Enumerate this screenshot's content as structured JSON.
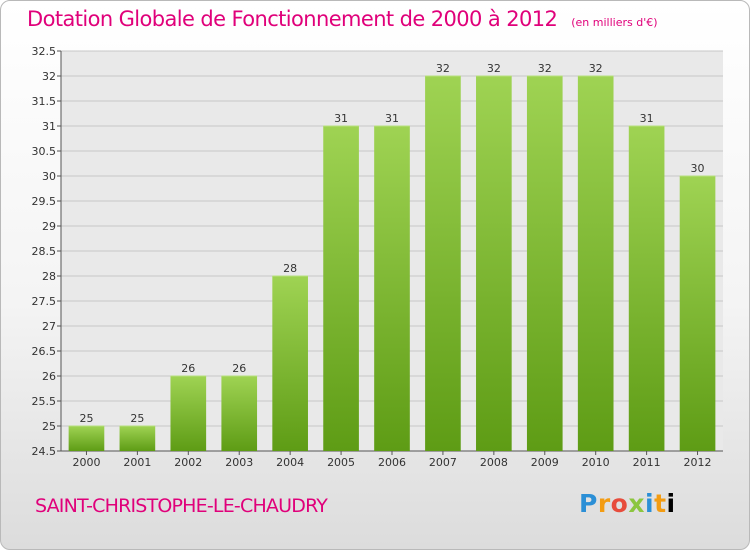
{
  "title": "Dotation Globale de Fonctionnement de 2000 à 2012",
  "subtitle": "(en milliers d'€)",
  "commune": "SAINT-CHRISTOPHE-LE-CHAUDRY",
  "logo": {
    "text": "Proxiti",
    "letters": [
      "P",
      "r",
      "o",
      "x",
      "i",
      "t",
      "i"
    ]
  },
  "colors": {
    "title": "#e0007a",
    "bar_top": "#9fd353",
    "bar_bottom": "#5e9c15"
  },
  "chart_data": {
    "type": "bar",
    "categories": [
      "2000",
      "2001",
      "2002",
      "2003",
      "2004",
      "2005",
      "2006",
      "2007",
      "2008",
      "2009",
      "2010",
      "2011",
      "2012"
    ],
    "values": [
      25,
      25,
      26,
      26,
      28,
      31,
      31,
      32,
      32,
      32,
      32,
      31,
      30
    ],
    "data_labels": [
      "25",
      "25",
      "26",
      "26",
      "28",
      "31",
      "31",
      "32",
      "32",
      "32",
      "32",
      "31",
      "30"
    ],
    "ylim": [
      24.5,
      32.5
    ],
    "yticks": [
      "24.5",
      "25",
      "25.5",
      "26",
      "26.5",
      "27",
      "27.5",
      "28",
      "28.5",
      "29",
      "29.5",
      "30",
      "30.5",
      "31",
      "31.5",
      "32",
      "32.5"
    ],
    "ytick_values": [
      24.5,
      25,
      25.5,
      26,
      26.5,
      27,
      27.5,
      28,
      28.5,
      29,
      29.5,
      30,
      30.5,
      31,
      31.5,
      32,
      32.5
    ],
    "grid": true,
    "legend": "none",
    "xlabel": "",
    "ylabel": ""
  }
}
